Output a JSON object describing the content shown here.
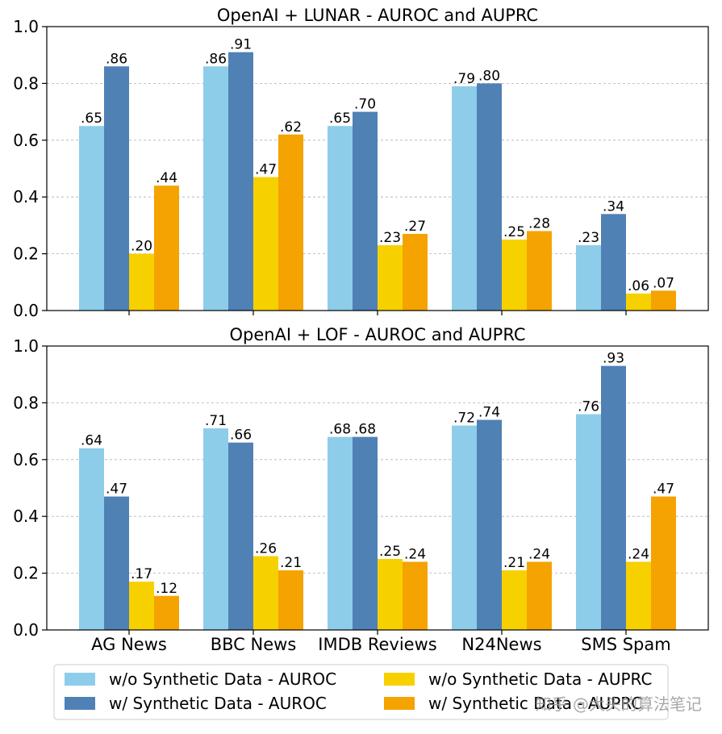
{
  "chart_data": [
    {
      "type": "bar",
      "title": "OpenAI + LUNAR - AUROC and AUPRC",
      "categories": [
        "AG News",
        "BBC News",
        "IMDB Reviews",
        "N24News",
        "SMS Spam"
      ],
      "ylim": [
        0,
        1.0
      ],
      "yticks": [
        "0.0",
        "0.2",
        "0.4",
        "0.6",
        "0.8",
        "1.0"
      ],
      "grid": true,
      "series": [
        {
          "name": "w/o Synthetic Data - AUROC",
          "values": [
            0.65,
            0.86,
            0.65,
            0.79,
            0.23
          ],
          "labels": [
            ".65",
            ".86",
            ".65",
            ".79",
            ".23"
          ]
        },
        {
          "name": "w/ Synthetic Data - AUROC",
          "values": [
            0.86,
            0.91,
            0.7,
            0.8,
            0.34
          ],
          "labels": [
            ".86",
            ".91",
            ".70",
            ".80",
            ".34"
          ]
        },
        {
          "name": "w/o Synthetic Data - AUPRC",
          "values": [
            0.2,
            0.47,
            0.23,
            0.25,
            0.06
          ],
          "labels": [
            ".20",
            ".47",
            ".23",
            ".25",
            ".06"
          ]
        },
        {
          "name": "w/ Synthetic Data - AUPRC",
          "values": [
            0.44,
            0.62,
            0.27,
            0.28,
            0.07
          ],
          "labels": [
            ".44",
            ".62",
            ".27",
            ".28",
            ".07"
          ]
        }
      ]
    },
    {
      "type": "bar",
      "title": "OpenAI + LOF - AUROC and AUPRC",
      "categories": [
        "AG News",
        "BBC News",
        "IMDB Reviews",
        "N24News",
        "SMS Spam"
      ],
      "ylim": [
        0,
        1.0
      ],
      "yticks": [
        "0.0",
        "0.2",
        "0.4",
        "0.6",
        "0.8",
        "1.0"
      ],
      "grid": true,
      "series": [
        {
          "name": "w/o Synthetic Data - AUROC",
          "values": [
            0.64,
            0.71,
            0.68,
            0.72,
            0.76
          ],
          "labels": [
            ".64",
            ".71",
            ".68",
            ".72",
            ".76"
          ]
        },
        {
          "name": "w/ Synthetic Data - AUROC",
          "values": [
            0.47,
            0.66,
            0.68,
            0.74,
            0.93
          ],
          "labels": [
            ".47",
            ".66",
            ".68",
            ".74",
            ".93"
          ]
        },
        {
          "name": "w/o Synthetic Data - AUPRC",
          "values": [
            0.17,
            0.26,
            0.25,
            0.21,
            0.24
          ],
          "labels": [
            ".17",
            ".26",
            ".25",
            ".21",
            ".24"
          ]
        },
        {
          "name": "w/ Synthetic Data - AUPRC",
          "values": [
            0.12,
            0.21,
            0.24,
            0.24,
            0.47
          ],
          "labels": [
            ".12",
            ".21",
            ".24",
            ".24",
            ".47"
          ]
        }
      ]
    }
  ],
  "colors": [
    "#8ecdea",
    "#4f81b5",
    "#f7d000",
    "#f4a300"
  ],
  "legend": {
    "position": "bottom",
    "items": [
      "w/o Synthetic Data - AUROC",
      "w/ Synthetic Data - AUROC",
      "w/o Synthetic Data - AUPRC",
      "w/ Synthetic Data - AUPRC"
    ]
  },
  "watermark": "知乎 @大头的算法笔记"
}
